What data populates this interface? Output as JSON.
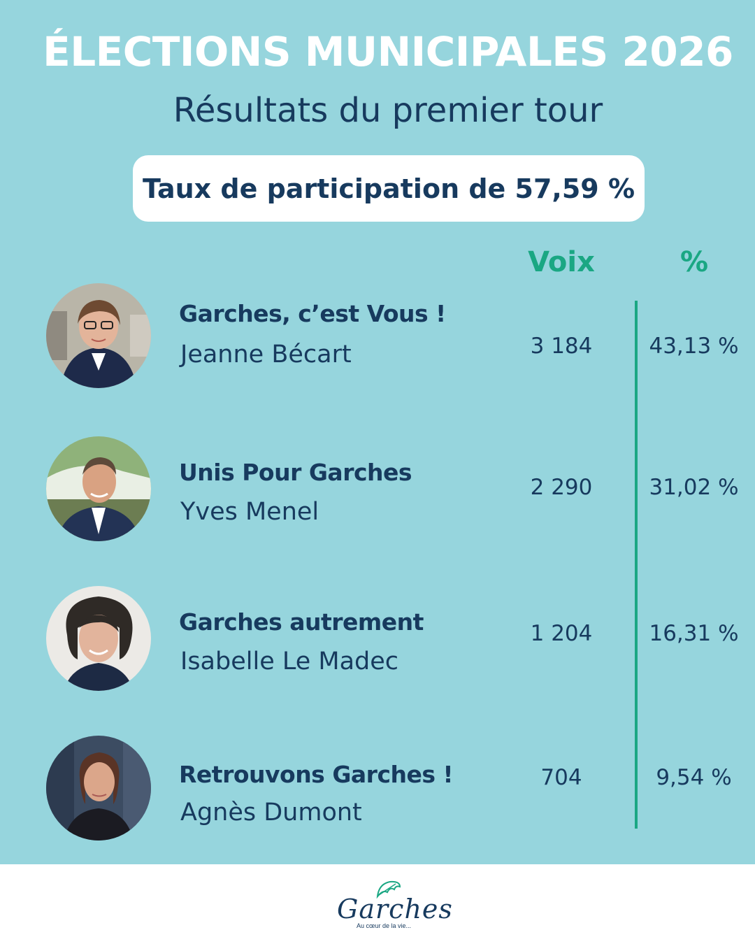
{
  "header": {
    "title": "ÉLECTIONS MUNICIPALES 2026",
    "subtitle": "Résultats du premier tour",
    "participation": "Taux de participation de 57,59 %"
  },
  "table": {
    "col_voix": "Voix",
    "col_pct": "%",
    "rows": [
      {
        "list": "Garches, c’est Vous !",
        "candidate": "Jeanne Bécart",
        "voix": "3 184",
        "pct": "43,13 %"
      },
      {
        "list": "Unis Pour Garches",
        "candidate": "Yves Menel",
        "voix": "2 290",
        "pct": "31,02 %"
      },
      {
        "list": "Garches autrement",
        "candidate": "Isabelle Le Madec",
        "voix": "1 204",
        "pct": "16,31 %"
      },
      {
        "list": "Retrouvons Garches !",
        "candidate": "Agnès Dumont",
        "voix": "704",
        "pct": "9,54 %"
      }
    ]
  },
  "footer": {
    "logo_text": "Garches",
    "tagline": "Au cœur de la vie..."
  },
  "colors": {
    "background": "#96d5dd",
    "navy": "#173a5e",
    "green": "#1aa783"
  }
}
